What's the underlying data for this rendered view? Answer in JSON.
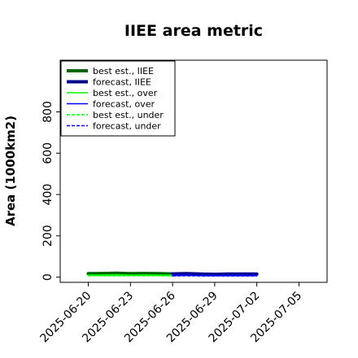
{
  "colors": {
    "best_iiee": "#006400",
    "forecast_iiee": "#00008b",
    "best_over": "#00ff00",
    "forecast_over": "#0000ff",
    "best_under": "#00ff00",
    "forecast_under": "#0000ff",
    "highlight_tick": "#228b22"
  },
  "chart_data": {
    "type": "line",
    "title": "IIEE area metric",
    "xlabel": "",
    "ylabel": "Area (1000km2)",
    "ylim": [
      -25,
      1050
    ],
    "xlim": [
      "2025-06-18",
      "2025-07-07"
    ],
    "y_ticks": [
      0,
      200,
      400,
      600,
      800
    ],
    "x_ticks": [
      "2025-06-20",
      "2025-06-23",
      "2025-06-26",
      "2025-06-29",
      "2025-07-02",
      "2025-07-05"
    ],
    "highlighted_x_tick": "2025-06-26",
    "grid": false,
    "legend_position": "top-left",
    "series": [
      {
        "name": "best est., IIEE",
        "style": "solid-thick",
        "color_key": "best_iiee",
        "x": [
          "2025-06-20",
          "2025-06-21",
          "2025-06-22",
          "2025-06-23",
          "2025-06-24",
          "2025-06-25",
          "2025-06-26"
        ],
        "y": [
          17,
          18,
          19,
          17,
          18,
          17,
          16
        ]
      },
      {
        "name": "forecast, IIEE",
        "style": "solid-thick",
        "color_key": "forecast_iiee",
        "x": [
          "2025-06-26",
          "2025-06-27",
          "2025-06-28",
          "2025-06-29",
          "2025-06-30",
          "2025-07-01",
          "2025-07-02"
        ],
        "y": [
          16,
          17,
          15,
          14,
          15,
          15,
          15
        ]
      },
      {
        "name": "best est., over",
        "style": "solid",
        "color_key": "best_over",
        "x": [
          "2025-06-20",
          "2025-06-21",
          "2025-06-22",
          "2025-06-23",
          "2025-06-24",
          "2025-06-25",
          "2025-06-26"
        ],
        "y": [
          10,
          11,
          12,
          10,
          11,
          10,
          10
        ]
      },
      {
        "name": "forecast, over",
        "style": "solid",
        "color_key": "forecast_over",
        "x": [
          "2025-06-26",
          "2025-06-27",
          "2025-06-28",
          "2025-06-29",
          "2025-06-30",
          "2025-07-01",
          "2025-07-02"
        ],
        "y": [
          10,
          10,
          9,
          8,
          9,
          9,
          9
        ]
      },
      {
        "name": "best est., under",
        "style": "dashed",
        "color_key": "best_under",
        "x": [
          "2025-06-20",
          "2025-06-21",
          "2025-06-22",
          "2025-06-23",
          "2025-06-24",
          "2025-06-25",
          "2025-06-26"
        ],
        "y": [
          7,
          7,
          7,
          7,
          7,
          7,
          6
        ]
      },
      {
        "name": "forecast, under",
        "style": "dashed",
        "color_key": "forecast_under",
        "x": [
          "2025-06-26",
          "2025-06-27",
          "2025-06-28",
          "2025-06-29",
          "2025-06-30",
          "2025-07-01",
          "2025-07-02"
        ],
        "y": [
          6,
          7,
          6,
          6,
          6,
          6,
          6
        ]
      }
    ]
  }
}
